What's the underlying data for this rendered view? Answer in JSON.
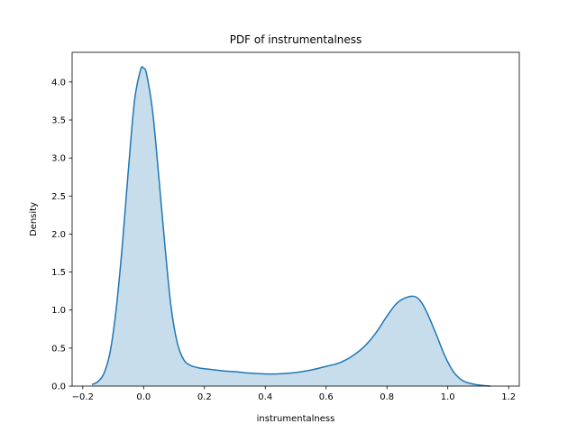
{
  "chart_data": {
    "type": "area",
    "title": "PDF of instrumentalness",
    "xlabel": "instrumentalness",
    "ylabel": "Density",
    "xlim": [
      -0.235,
      1.235
    ],
    "ylim": [
      0,
      4.39
    ],
    "xticks": [
      -0.2,
      0.0,
      0.2,
      0.4,
      0.6,
      0.8,
      1.0,
      1.2
    ],
    "xtick_labels": [
      "−0.2",
      "0.0",
      "0.2",
      "0.4",
      "0.6",
      "0.8",
      "1.0",
      "1.2"
    ],
    "yticks": [
      0.0,
      0.5,
      1.0,
      1.5,
      2.0,
      2.5,
      3.0,
      3.5,
      4.0
    ],
    "ytick_labels": [
      "0.0",
      "0.5",
      "1.0",
      "1.5",
      "2.0",
      "2.5",
      "3.0",
      "3.5",
      "4.0"
    ],
    "grid": false,
    "series": [
      {
        "color": "#1f77b4",
        "fill_color": "#1f77b4",
        "fill_opacity": 0.25,
        "x": [
          -0.17,
          -0.15,
          -0.13,
          -0.11,
          -0.09,
          -0.07,
          -0.05,
          -0.03,
          -0.01,
          0.0,
          0.01,
          0.03,
          0.05,
          0.07,
          0.09,
          0.11,
          0.13,
          0.15,
          0.18,
          0.22,
          0.26,
          0.3,
          0.35,
          0.4,
          0.44,
          0.48,
          0.52,
          0.56,
          0.6,
          0.64,
          0.68,
          0.72,
          0.76,
          0.8,
          0.83,
          0.86,
          0.89,
          0.91,
          0.93,
          0.96,
          0.99,
          1.02,
          1.05,
          1.08,
          1.11,
          1.14
        ],
        "y": [
          0.02,
          0.06,
          0.17,
          0.45,
          1.02,
          1.85,
          2.85,
          3.75,
          4.16,
          4.18,
          4.1,
          3.6,
          2.75,
          1.85,
          1.05,
          0.58,
          0.36,
          0.28,
          0.24,
          0.22,
          0.2,
          0.19,
          0.17,
          0.16,
          0.16,
          0.17,
          0.19,
          0.22,
          0.26,
          0.3,
          0.38,
          0.5,
          0.68,
          0.92,
          1.08,
          1.16,
          1.18,
          1.12,
          0.98,
          0.7,
          0.4,
          0.18,
          0.07,
          0.03,
          0.01,
          0.0
        ]
      }
    ]
  }
}
